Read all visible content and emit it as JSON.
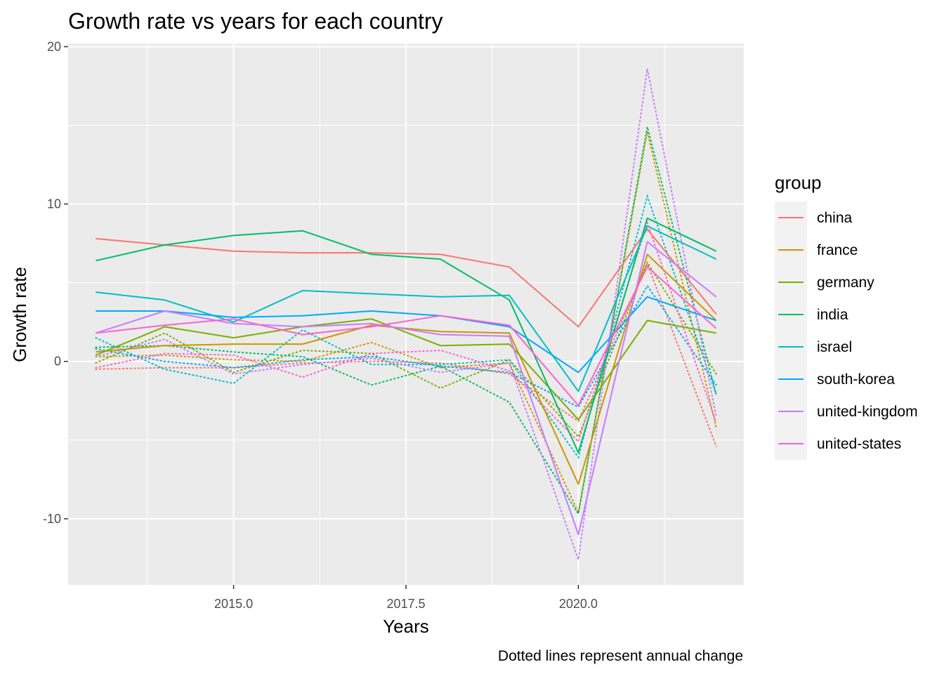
{
  "chart_data": {
    "type": "line",
    "title": "Growth rate vs years for each country",
    "xlabel": "Years",
    "ylabel": "Growth rate",
    "caption": "Dotted lines represent annual change",
    "legend_title": "group",
    "legend_position": "right",
    "grid": true,
    "xlim": [
      2012.6,
      2022.4
    ],
    "ylim": [
      -14.2,
      20.2
    ],
    "x_ticks": [
      2015.0,
      2017.5,
      2020.0
    ],
    "x_tick_labels": [
      "2015.0",
      "2017.5",
      "2020.0"
    ],
    "y_ticks": [
      -10,
      0,
      10,
      20
    ],
    "y_tick_labels": [
      "-10",
      "0",
      "10",
      "20"
    ],
    "x": [
      2013,
      2014,
      2015,
      2016,
      2017,
      2018,
      2019,
      2020,
      2021,
      2022
    ],
    "series": [
      {
        "name": "china",
        "color": "#F8766D",
        "growth": [
          7.8,
          7.4,
          7.0,
          6.9,
          6.9,
          6.8,
          6.0,
          2.2,
          8.4,
          3.0
        ],
        "annual_change": [
          -0.5,
          -0.4,
          -0.4,
          -0.1,
          0.0,
          -0.1,
          -0.8,
          -3.8,
          6.2,
          -5.4
        ]
      },
      {
        "name": "france",
        "color": "#CD9600",
        "growth": [
          0.6,
          1.0,
          1.1,
          1.1,
          2.3,
          1.9,
          1.8,
          -7.8,
          6.8,
          2.6
        ],
        "annual_change": [
          0.3,
          0.4,
          0.1,
          0.0,
          1.2,
          -0.4,
          -0.1,
          -9.6,
          14.6,
          -4.2
        ]
      },
      {
        "name": "germany",
        "color": "#7CAE00",
        "growth": [
          0.4,
          2.2,
          1.5,
          2.2,
          2.7,
          1.0,
          1.1,
          -3.7,
          2.6,
          1.8
        ],
        "annual_change": [
          -0.1,
          1.8,
          -0.7,
          0.7,
          0.5,
          -1.7,
          0.1,
          -4.8,
          6.3,
          -0.8
        ]
      },
      {
        "name": "india",
        "color": "#00BE67",
        "growth": [
          6.4,
          7.4,
          8.0,
          8.3,
          6.8,
          6.5,
          3.9,
          -5.8,
          9.1,
          7.0
        ],
        "annual_change": [
          0.9,
          1.0,
          0.6,
          0.3,
          -1.5,
          -0.3,
          -2.6,
          -9.7,
          14.9,
          -2.1
        ]
      },
      {
        "name": "israel",
        "color": "#00BFC4",
        "growth": [
          4.4,
          3.9,
          2.5,
          4.5,
          4.3,
          4.1,
          4.2,
          -1.9,
          8.6,
          6.5
        ],
        "annual_change": [
          1.5,
          -0.5,
          -1.4,
          2.0,
          -0.2,
          -0.2,
          0.1,
          -6.1,
          10.5,
          -2.1
        ]
      },
      {
        "name": "south-korea",
        "color": "#00A9FF",
        "growth": [
          3.2,
          3.2,
          2.8,
          2.9,
          3.2,
          2.9,
          2.2,
          -0.7,
          4.1,
          2.6
        ],
        "annual_change": [
          0.8,
          0.0,
          -0.4,
          0.1,
          0.3,
          -0.3,
          -0.7,
          -2.9,
          4.8,
          -1.5
        ]
      },
      {
        "name": "united-kingdom",
        "color": "#C77CFF",
        "growth": [
          1.8,
          3.2,
          2.4,
          2.2,
          2.4,
          1.7,
          1.6,
          -11.0,
          7.6,
          4.1
        ],
        "annual_change": [
          0.3,
          1.4,
          -0.8,
          -0.2,
          0.2,
          -0.7,
          -0.1,
          -12.6,
          18.6,
          -3.5
        ]
      },
      {
        "name": "united-states",
        "color": "#FF61CC",
        "growth": [
          1.8,
          2.3,
          2.7,
          1.7,
          2.2,
          2.9,
          2.3,
          -2.8,
          6.0,
          2.1
        ],
        "annual_change": [
          -0.4,
          0.5,
          0.4,
          -1.0,
          0.5,
          0.7,
          -0.6,
          -5.1,
          8.8,
          -3.9
        ]
      }
    ]
  }
}
